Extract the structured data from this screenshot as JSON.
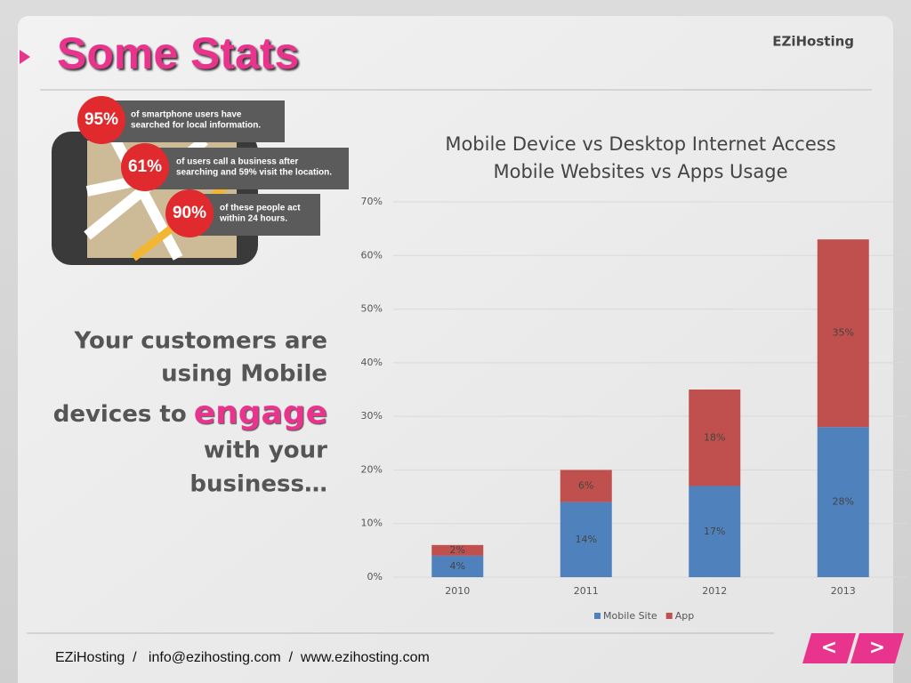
{
  "header": {
    "title": "Some Stats",
    "brand": "EZiHosting"
  },
  "infographic": {
    "items": [
      {
        "stat": "95%",
        "lines": [
          "of smartphone users have",
          "searched for local information."
        ]
      },
      {
        "stat": "61%",
        "lines": [
          "of users call a business after",
          "searching and 59% visit the location."
        ]
      },
      {
        "stat": "90%",
        "lines": [
          "of these people act",
          "within 24 hours."
        ]
      }
    ]
  },
  "tagline": {
    "line1": "Your customers are",
    "line2": "using Mobile",
    "line3": "devices to",
    "highlight": "engage",
    "line4": "with your",
    "line5": "business…"
  },
  "chart_data": {
    "type": "stacked_bar",
    "title": [
      "Mobile Device vs Desktop Internet Access",
      "Mobile Websites vs Apps Usage"
    ],
    "categories": [
      "2010",
      "2011",
      "2012",
      "2013"
    ],
    "series": [
      {
        "name": "Mobile Site",
        "color": "#4f81bd",
        "values": [
          4,
          14,
          17,
          28
        ],
        "value_labels": [
          "4%",
          "14%",
          "17%",
          "28%"
        ]
      },
      {
        "name": "App",
        "color": "#c0504d",
        "values": [
          2,
          6,
          18,
          35
        ],
        "value_labels": [
          "2%",
          "6%",
          "18%",
          "35%"
        ]
      }
    ],
    "ylim": [
      0,
      70
    ],
    "yticks": [
      {
        "value": 0,
        "label": "0%"
      },
      {
        "value": 10,
        "label": "10%"
      },
      {
        "value": 20,
        "label": "20%"
      },
      {
        "value": 30,
        "label": "30%"
      },
      {
        "value": 40,
        "label": "40%"
      },
      {
        "value": 50,
        "label": "50%"
      },
      {
        "value": 60,
        "label": "60%"
      },
      {
        "value": 70,
        "label": "70%"
      }
    ],
    "grid": true,
    "legend": "bottom"
  },
  "footer": {
    "text": "EZiHosting  /   info@ezihosting.com  /  www.ezihosting.com"
  },
  "nav": {
    "prev": "<",
    "next": ">"
  }
}
